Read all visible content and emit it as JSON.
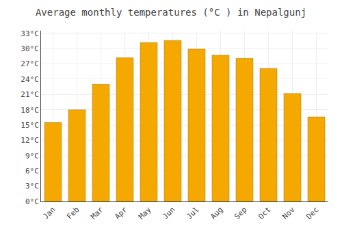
{
  "chart_data": {
    "type": "bar",
    "title": "Average monthly temperatures (°C ) in Nepalgunj",
    "categories": [
      "Jan",
      "Feb",
      "Mar",
      "Apr",
      "May",
      "Jun",
      "Jul",
      "Aug",
      "Sep",
      "Oct",
      "Nov",
      "Dec"
    ],
    "values": [
      15.5,
      18.0,
      23.0,
      28.2,
      31.2,
      31.6,
      29.9,
      28.7,
      28.1,
      26.1,
      21.2,
      16.6
    ],
    "color": "#F5A800",
    "ylim": [
      0,
      33.5
    ],
    "yticks": [
      {
        "value": 0,
        "label": "0°C"
      },
      {
        "value": 3,
        "label": "3°C"
      },
      {
        "value": 6,
        "label": "6°C"
      },
      {
        "value": 9,
        "label": "9°C"
      },
      {
        "value": 12,
        "label": "12°C"
      },
      {
        "value": 15,
        "label": "15°C"
      },
      {
        "value": 18,
        "label": "18°C"
      },
      {
        "value": 21,
        "label": "21°C"
      },
      {
        "value": 24,
        "label": "24°C"
      },
      {
        "value": 27,
        "label": "27°C"
      },
      {
        "value": 30,
        "label": "30°C"
      },
      {
        "value": 33,
        "label": "33°C"
      }
    ],
    "grid": true
  }
}
